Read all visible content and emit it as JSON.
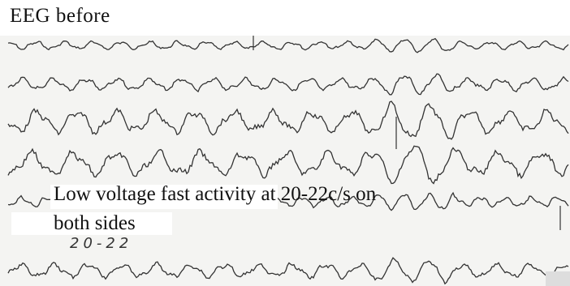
{
  "figure": {
    "title": "EEG  before",
    "caption_line1": "Low voltage fast activity at 20-22c/s on",
    "caption_line2": "both sides",
    "handwritten_note": "20-22"
  }
}
